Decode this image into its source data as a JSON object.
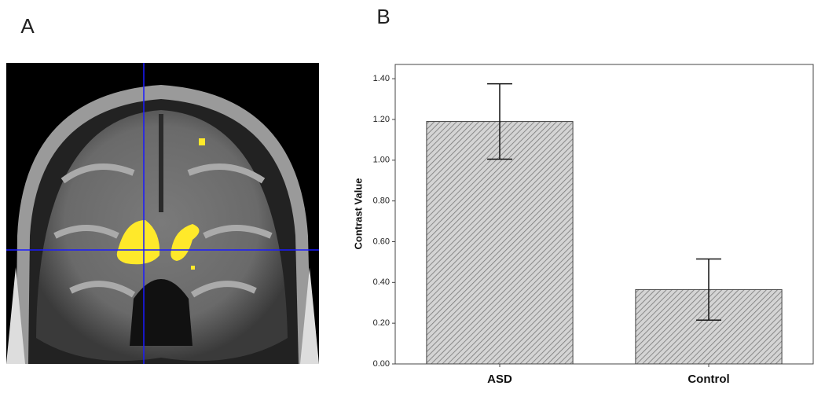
{
  "panel_labels": [
    "A",
    "B"
  ],
  "chart_data": {
    "type": "bar",
    "y_label": "Contrast Value",
    "categories": [
      "ASD",
      "Control"
    ],
    "values": [
      1.19,
      0.365
    ],
    "errors": [
      0.185,
      0.15
    ],
    "color": "#bdbdbd",
    "ylim": [
      0,
      1.47
    ],
    "yticks": [
      {
        "value": 0,
        "label": "0.00"
      },
      {
        "value": 0.2,
        "label": "0.20"
      },
      {
        "value": 0.4,
        "label": "0.40"
      },
      {
        "value": 0.6,
        "label": "0.60"
      },
      {
        "value": 0.8,
        "label": "0.80"
      },
      {
        "value": 1.0,
        "label": "1.00"
      },
      {
        "value": 1.2,
        "label": "1.20"
      },
      {
        "value": 1.4,
        "label": "1.40"
      }
    ],
    "grid": false
  }
}
